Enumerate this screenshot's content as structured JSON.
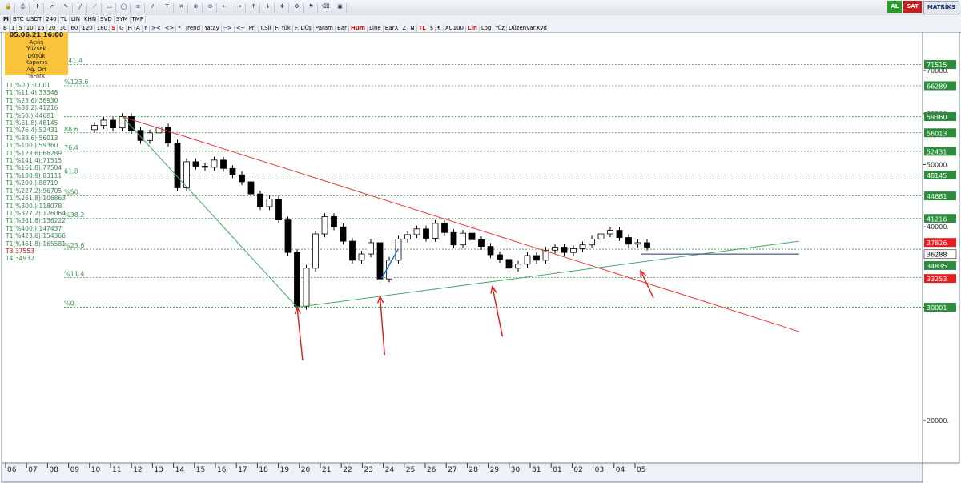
{
  "toolbar": {
    "row1_icons": [
      "lock-icon",
      "print-icon",
      "crosshair-icon",
      "arrow-icon",
      "pencil-icon",
      "line-icon",
      "trend-icon",
      "rect-icon",
      "ellipse-icon",
      "fib-icon",
      "channel-icon",
      "text-icon",
      "cross-icon",
      "zoom-in-icon",
      "zoom-out-icon",
      "arrow-left-icon",
      "arrow-right-icon",
      "arrow-up-icon",
      "arrow-down-icon",
      "pan-icon",
      "settings-icon",
      "flag-icon",
      "eraser-icon",
      "save-icon"
    ],
    "row2": {
      "symbol": "BTC_USDT",
      "interval": "240",
      "currency": "TL",
      "items": [
        "LIN",
        "KHN",
        "SVD",
        "SYM",
        "TMP"
      ]
    },
    "row3": {
      "periods": [
        "B",
        "1",
        "5",
        "10",
        "15",
        "20",
        "30",
        "60",
        "120",
        "180",
        "S",
        "G",
        "H",
        "A",
        "Y"
      ],
      "tools": [
        "><",
        "<>",
        "*",
        "Trend",
        "Yatay",
        "-->",
        "<--",
        "Prl",
        "T.Sil",
        "F. Yük",
        "F. Düş",
        "Param",
        "Bar",
        "Hum",
        "Line",
        "BarX",
        "Z",
        "N",
        "TL",
        "$",
        "€",
        "XU100",
        "Lin",
        "Log",
        "Yüz",
        "DüzenVar.Kyd"
      ]
    },
    "brand": {
      "al": "AL",
      "sat": "SAT",
      "name": "MATRİKS"
    }
  },
  "infobox": {
    "date": "05.06.21 16:00",
    "lines": [
      "Açılış",
      "Yüksek",
      "Düşük",
      "Kapanış",
      "Ağ. Ort",
      "%Fark"
    ]
  },
  "fib_list": [
    "T1(%0.):30001",
    "T1(%11.4):33348",
    "T1(%23.6):36930",
    "T1(%38.2):41216",
    "T1(%50.):44681",
    "T1(%61.8):48145",
    "T1(%76.4):52431",
    "T1(%88.6):56013",
    "T1(%100.):59360",
    "T1(%123.6):66289",
    "T1(%141.4):71515",
    "T1(%161.8):77504",
    "T1(%180.9):83111",
    "T1(%200.):88719",
    "T1(%227.2):96705",
    "T1(%261.8):106863",
    "T1(%300.):118078",
    "T1(%327.2):126064",
    "T1(%361.8):136222",
    "T1(%400.):147437",
    "T1(%423.6):154366",
    "T1(%461.8):165581"
  ],
  "t3": "T3:37553",
  "t4": "T4:34932",
  "chart_data": {
    "type": "candlestick",
    "symbol": "BTC_USDT",
    "interval_minutes": 240,
    "scale": "log",
    "ylim": [
      16500,
      77000
    ],
    "y_ticks": [
      20000,
      30000,
      40000,
      50000,
      60000,
      70000
    ],
    "y_tick_labels": [
      "20000.",
      "30000.",
      "40000.",
      "50000.",
      "60000.",
      "70000."
    ],
    "x_tick_labels": [
      "06",
      "07",
      "08",
      "09",
      "10",
      "11",
      "12",
      "13",
      "14",
      "15",
      "16",
      "17",
      "18",
      "19",
      "20",
      "21",
      "22",
      "23",
      "24",
      "25",
      "26",
      "27",
      "28",
      "29",
      "30",
      "31",
      "01",
      "02",
      "03",
      "04",
      "05"
    ],
    "fib_levels": [
      {
        "label": "%0.",
        "value": 30001
      },
      {
        "label": "%11.4",
        "value": 33348
      },
      {
        "label": "%23.6",
        "value": 36930
      },
      {
        "label": "%38.2",
        "value": 41216
      },
      {
        "label": "%50.",
        "value": 44681
      },
      {
        "label": "61.8",
        "value": 48145
      },
      {
        "label": "76.4",
        "value": 52431
      },
      {
        "label": "88.6",
        "value": 56013
      },
      {
        "label": "",
        "value": 59360
      },
      {
        "label": "%123.6",
        "value": 66289
      },
      {
        "label": "141.4",
        "value": 71515
      }
    ],
    "axis_tags": [
      {
        "value": 71515,
        "label": "71515",
        "style": "green"
      },
      {
        "value": 66289,
        "label": "66289",
        "style": "green"
      },
      {
        "value": 59360,
        "label": "59360",
        "style": "green"
      },
      {
        "value": 56013,
        "label": "56013",
        "style": "green"
      },
      {
        "value": 52431,
        "label": "52431",
        "style": "green"
      },
      {
        "value": 48145,
        "label": "48145",
        "style": "green"
      },
      {
        "value": 44681,
        "label": "44681",
        "style": "green"
      },
      {
        "value": 41216,
        "label": "41216",
        "style": "green"
      },
      {
        "value": 37826,
        "label": "37826",
        "style": "red"
      },
      {
        "value": 36288,
        "label": "36288",
        "style": "white"
      },
      {
        "value": 34835,
        "label": "34835",
        "style": "green"
      },
      {
        "value": 33253,
        "label": "33253",
        "style": "red"
      },
      {
        "value": 30001,
        "label": "30001",
        "style": "green"
      }
    ],
    "current_price": 36288,
    "path": [
      [
        0,
        57500
      ],
      [
        1,
        58600
      ],
      [
        2,
        57000
      ],
      [
        3,
        59360
      ],
      [
        4,
        56500
      ],
      [
        5,
        54500
      ],
      [
        6,
        56000
      ],
      [
        7,
        57200
      ],
      [
        8,
        54000
      ],
      [
        9,
        46000
      ],
      [
        10,
        50500
      ],
      [
        11,
        49700
      ],
      [
        12,
        49500
      ],
      [
        13,
        50800
      ],
      [
        14,
        49300
      ],
      [
        15,
        48200
      ],
      [
        16,
        47000
      ],
      [
        17,
        45000
      ],
      [
        18,
        43000
      ],
      [
        19,
        44200
      ],
      [
        20,
        41000
      ],
      [
        21,
        36500
      ],
      [
        22,
        30100
      ],
      [
        23,
        34500
      ],
      [
        24,
        39000
      ],
      [
        25,
        41500
      ],
      [
        26,
        40000
      ],
      [
        27,
        38000
      ],
      [
        28,
        35500
      ],
      [
        29,
        36300
      ],
      [
        30,
        37800
      ],
      [
        31,
        33200
      ],
      [
        32,
        35500
      ],
      [
        33,
        38300
      ],
      [
        34,
        38900
      ],
      [
        35,
        39700
      ],
      [
        36,
        38400
      ],
      [
        37,
        40500
      ],
      [
        38,
        39200
      ],
      [
        39,
        37500
      ],
      [
        40,
        39100
      ],
      [
        41,
        38200
      ],
      [
        42,
        37300
      ],
      [
        43,
        36200
      ],
      [
        44,
        35600
      ],
      [
        45,
        34500
      ],
      [
        46,
        35000
      ],
      [
        47,
        36100
      ],
      [
        48,
        35500
      ],
      [
        49,
        36800
      ],
      [
        50,
        37200
      ],
      [
        51,
        36500
      ],
      [
        52,
        37000
      ],
      [
        53,
        37500
      ],
      [
        54,
        38300
      ],
      [
        55,
        39000
      ],
      [
        56,
        39500
      ],
      [
        57,
        38500
      ],
      [
        58,
        37600
      ],
      [
        59,
        37800
      ],
      [
        60,
        37200
      ]
    ],
    "trendlines": [
      {
        "color": "red",
        "from": [
          3,
          59360
        ],
        "to": [
          76.5,
          27500
        ]
      },
      {
        "color": "green",
        "from": [
          3,
          59360
        ],
        "to": [
          22,
          30001
        ]
      },
      {
        "color": "green",
        "from": [
          22,
          30001
        ],
        "to": [
          76.5,
          38000
        ]
      },
      {
        "color": "blue",
        "from": [
          31.2,
          33300
        ],
        "to": [
          33,
          37000
        ]
      },
      {
        "color": "navy",
        "from": [
          59.3,
          36288
        ],
        "to": [
          76.5,
          36288
        ]
      }
    ],
    "annotations": [
      {
        "type": "arrow",
        "color": "red",
        "from": [
          22.6,
          24800
        ],
        "to": [
          22,
          30000
        ]
      },
      {
        "type": "arrow",
        "color": "red",
        "from": [
          31.5,
          25300
        ],
        "to": [
          31,
          31200
        ]
      },
      {
        "type": "arrow",
        "color": "red",
        "from": [
          44.3,
          27000
        ],
        "to": [
          43.2,
          32300
        ]
      },
      {
        "type": "arrow",
        "color": "red",
        "from": [
          60.7,
          31000
        ],
        "to": [
          59.3,
          34200
        ]
      }
    ]
  }
}
